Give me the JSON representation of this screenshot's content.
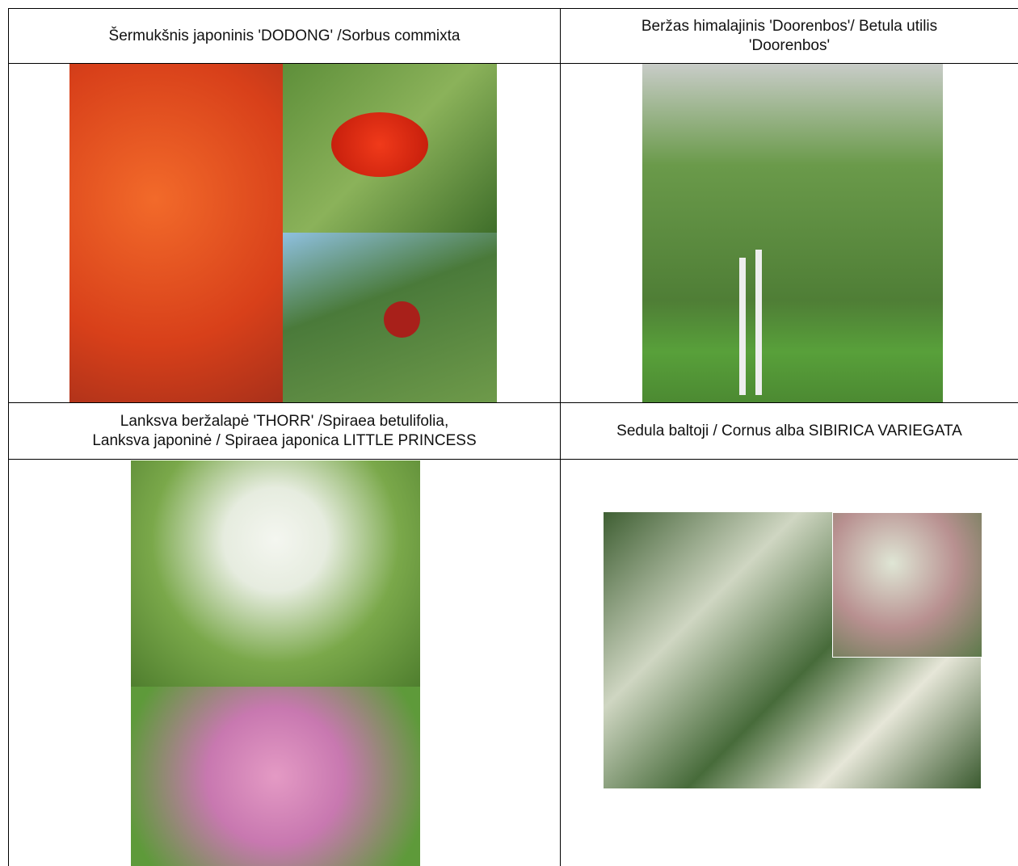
{
  "table": {
    "rows": [
      [
        {
          "lines": [
            "Šermukšnis japoninis 'DODONG' /Sorbus commixta"
          ]
        },
        {
          "lines": [
            "Beržas himalajinis 'Doorenbos'/ Betula utilis",
            "'Doorenbos'"
          ]
        }
      ],
      [
        {
          "lines": [
            "Lanksva beržalapė 'THORR' /Spiraea betulifolia,",
            "Lanksva japoninė / Spiraea japonica LITTLE PRINCESS"
          ]
        },
        {
          "lines": [
            "Sedula baltoji / Cornus alba SIBIRICA VARIEGATA"
          ]
        }
      ]
    ]
  }
}
